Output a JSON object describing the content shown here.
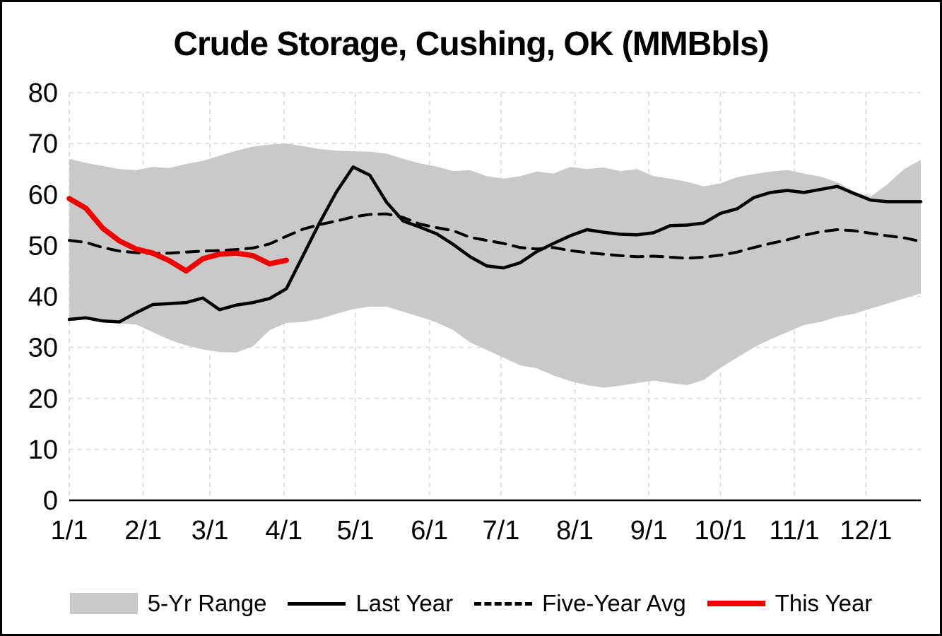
{
  "chart_data": {
    "type": "line",
    "title": "Crude Storage, Cushing, OK (MMBbls)",
    "xlabel": "",
    "ylabel": "",
    "ylim": [
      0,
      80
    ],
    "yticks": [
      0,
      10,
      20,
      30,
      40,
      50,
      60,
      70,
      80
    ],
    "x_tick_labels": [
      "1/1",
      "2/1",
      "3/1",
      "4/1",
      "5/1",
      "6/1",
      "7/1",
      "8/1",
      "9/1",
      "10/1",
      "11/1",
      "12/1"
    ],
    "x_tick_days": [
      0,
      31,
      59,
      90,
      120,
      151,
      181,
      212,
      243,
      273,
      304,
      334
    ],
    "x_interval_days": 7,
    "x_max_day": 357,
    "grid": "dashed-both-axes",
    "legend_position": "bottom",
    "band": {
      "name": "5-Yr Range",
      "color": "#c9c9c9",
      "max": [
        67.0,
        66.2,
        65.6,
        65.0,
        64.8,
        65.4,
        65.2,
        66.0,
        66.6,
        67.6,
        68.6,
        69.4,
        69.8,
        70.0,
        69.5,
        68.9,
        68.6,
        68.5,
        68.4,
        68.0,
        67.0,
        66.1,
        65.5,
        64.6,
        64.8,
        63.6,
        63.1,
        63.6,
        64.5,
        64.1,
        65.4,
        65.0,
        65.3,
        64.6,
        65.0,
        63.6,
        63.1,
        62.5,
        61.6,
        62.2,
        63.4,
        64.0,
        64.5,
        64.8,
        64.1,
        63.5,
        62.4,
        60.6,
        59.6,
        62.0,
        65.0,
        66.8
      ],
      "min": [
        35.3,
        35.5,
        35.0,
        34.7,
        34.5,
        33.0,
        31.5,
        30.4,
        29.6,
        29.1,
        29.0,
        30.2,
        33.4,
        34.8,
        35.0,
        35.6,
        36.6,
        37.5,
        38.0,
        38.0,
        37.0,
        36.0,
        34.9,
        33.4,
        31.0,
        29.5,
        28.0,
        26.5,
        25.9,
        24.5,
        23.4,
        22.6,
        22.1,
        22.5,
        23.0,
        23.5,
        23.0,
        22.6,
        23.6,
        26.0,
        28.0,
        30.0,
        31.6,
        33.0,
        34.4,
        35.0,
        36.0,
        36.6,
        37.6,
        38.6,
        39.6,
        40.6
      ]
    },
    "series": [
      {
        "name": "Last Year",
        "color": "#000000",
        "style": "solid",
        "width": 4.5,
        "values": [
          35.5,
          35.8,
          35.2,
          35.0,
          36.8,
          38.4,
          38.6,
          38.8,
          39.7,
          37.4,
          38.3,
          38.8,
          39.6,
          41.5,
          48.0,
          54.5,
          60.5,
          65.4,
          63.8,
          58.5,
          54.8,
          53.6,
          52.3,
          50.2,
          47.8,
          46.0,
          45.6,
          46.6,
          48.8,
          50.4,
          51.9,
          53.1,
          52.6,
          52.2,
          52.1,
          52.5,
          53.9,
          54.0,
          54.4,
          56.3,
          57.2,
          59.4,
          60.4,
          60.8,
          60.4,
          61.0,
          61.6,
          60.2,
          58.9,
          58.6,
          58.6,
          58.6
        ]
      },
      {
        "name": "Five-Year Avg",
        "color": "#000000",
        "style": "dashed",
        "width": 4,
        "values": [
          51.0,
          50.6,
          49.6,
          48.9,
          48.6,
          48.4,
          48.5,
          48.7,
          48.9,
          49.0,
          49.2,
          49.5,
          50.3,
          51.8,
          53.2,
          54.1,
          54.8,
          55.6,
          56.1,
          56.2,
          55.5,
          54.2,
          53.5,
          52.9,
          51.6,
          51.0,
          50.4,
          49.6,
          49.3,
          49.6,
          49.0,
          48.6,
          48.3,
          48.0,
          47.8,
          47.9,
          47.7,
          47.5,
          47.7,
          48.1,
          48.7,
          49.6,
          50.4,
          51.1,
          52.0,
          52.7,
          53.1,
          52.9,
          52.4,
          51.9,
          51.5,
          50.8
        ]
      },
      {
        "name": "This Year",
        "color": "#f00000",
        "style": "solid",
        "width": 7.5,
        "values": [
          59.2,
          57.3,
          53.4,
          50.9,
          49.3,
          48.5,
          47.0,
          45.0,
          47.4,
          48.3,
          48.5,
          48.0,
          46.4,
          47.1
        ]
      }
    ],
    "grid_color": "#d9d9d9",
    "axis_color": "#000000"
  },
  "legend": {
    "range_label": "5-Yr Range",
    "last_year_label": "Last Year",
    "five_year_avg_label": "Five-Year Avg",
    "this_year_label": "This Year"
  }
}
